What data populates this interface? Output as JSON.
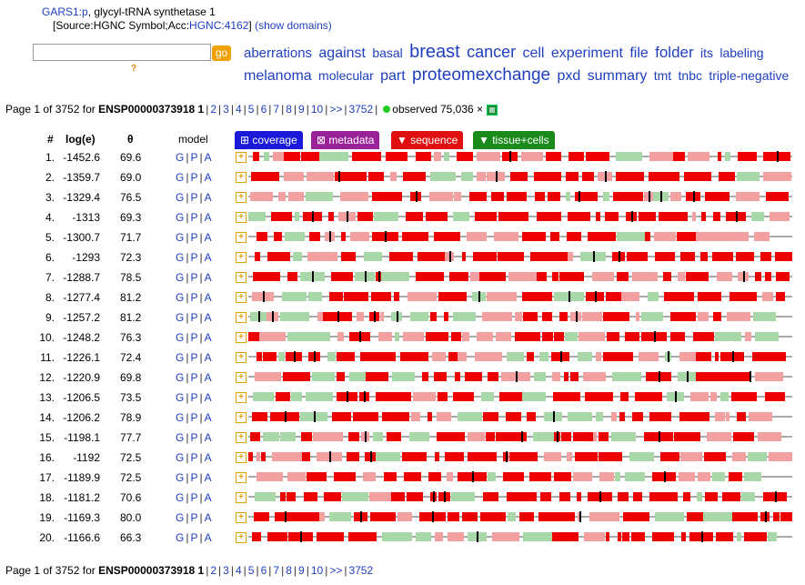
{
  "header": {
    "gene_symbol": "GARS1:p",
    "gene_desc": ", glycyl-tRNA synthetase 1",
    "source_prefix": "[Source:HGNC Symbol;Acc:",
    "source_acc": "HGNC:4162",
    "source_suffix": "]",
    "show_domains": "(show domains)"
  },
  "search": {
    "value": "",
    "go_label": "go",
    "help": "?"
  },
  "tag_cloud": [
    {
      "text": "aberrations",
      "size": 15
    },
    {
      "text": "against",
      "size": 16
    },
    {
      "text": "basal",
      "size": 14
    },
    {
      "text": "breast",
      "size": 20
    },
    {
      "text": "cancer",
      "size": 18
    },
    {
      "text": "cell",
      "size": 16
    },
    {
      "text": "experiment",
      "size": 16
    },
    {
      "text": "file",
      "size": 16
    },
    {
      "text": "folder",
      "size": 17
    },
    {
      "text": "its",
      "size": 14
    },
    {
      "text": "labeling",
      "size": 14
    },
    {
      "text": "melanoma",
      "size": 16
    },
    {
      "text": "molecular",
      "size": 14
    },
    {
      "text": "part",
      "size": 16
    },
    {
      "text": "proteomexchange",
      "size": 19
    },
    {
      "text": "pxd",
      "size": 16
    },
    {
      "text": "summary",
      "size": 16
    },
    {
      "text": "tmt",
      "size": 14
    },
    {
      "text": "tnbc",
      "size": 14
    },
    {
      "text": "triple-negative",
      "size": 14
    }
  ],
  "pager": {
    "prefix": "Page 1 of 3752 for ",
    "protein": "ENSP00000373918",
    "current": "1",
    "pages": [
      "2",
      "3",
      "4",
      "5",
      "6",
      "7",
      "8",
      "9",
      "10",
      ">>",
      "3752"
    ],
    "observed_label": "observed 75,036",
    "close": "×"
  },
  "columns": {
    "num": "#",
    "loge": "log(e)",
    "theta": "θ",
    "model": "model"
  },
  "tabs": [
    {
      "label": "⊞ coverage",
      "color": "#1a1ad8"
    },
    {
      "label": "⊠ metadata",
      "color": "#992299"
    },
    {
      "label": "▼ sequence",
      "color": "#e01010"
    },
    {
      "label": "▼ tissue+cells",
      "color": "#1a8a1a"
    }
  ],
  "model_links": [
    "G",
    "P",
    "A"
  ],
  "colors": {
    "coverage_red": "#ee0000",
    "coverage_pink": "#f4a0a0",
    "coverage_green": "#a8d8a8",
    "line": "#555555"
  },
  "rows": [
    {
      "n": "1.",
      "loge": "-1452.6",
      "theta": "69.6"
    },
    {
      "n": "2.",
      "loge": "-1359.7",
      "theta": "69.0"
    },
    {
      "n": "3.",
      "loge": "-1329.4",
      "theta": "76.5"
    },
    {
      "n": "4.",
      "loge": "-1313",
      "theta": "69.3"
    },
    {
      "n": "5.",
      "loge": "-1300.7",
      "theta": "71.7"
    },
    {
      "n": "6.",
      "loge": "-1293",
      "theta": "72.3"
    },
    {
      "n": "7.",
      "loge": "-1288.7",
      "theta": "78.5"
    },
    {
      "n": "8.",
      "loge": "-1277.4",
      "theta": "81.2"
    },
    {
      "n": "9.",
      "loge": "-1257.2",
      "theta": "81.2"
    },
    {
      "n": "10.",
      "loge": "-1248.2",
      "theta": "76.3"
    },
    {
      "n": "11.",
      "loge": "-1226.1",
      "theta": "72.4"
    },
    {
      "n": "12.",
      "loge": "-1220.9",
      "theta": "69.8"
    },
    {
      "n": "13.",
      "loge": "-1206.5",
      "theta": "73.5"
    },
    {
      "n": "14.",
      "loge": "-1206.2",
      "theta": "78.9"
    },
    {
      "n": "15.",
      "loge": "-1198.1",
      "theta": "77.7"
    },
    {
      "n": "16.",
      "loge": "-1192",
      "theta": "72.5"
    },
    {
      "n": "17.",
      "loge": "-1189.9",
      "theta": "72.5"
    },
    {
      "n": "18.",
      "loge": "-1181.2",
      "theta": "70.6"
    },
    {
      "n": "19.",
      "loge": "-1169.3",
      "theta": "80.0"
    },
    {
      "n": "20.",
      "loge": "-1166.6",
      "theta": "66.3"
    }
  ]
}
